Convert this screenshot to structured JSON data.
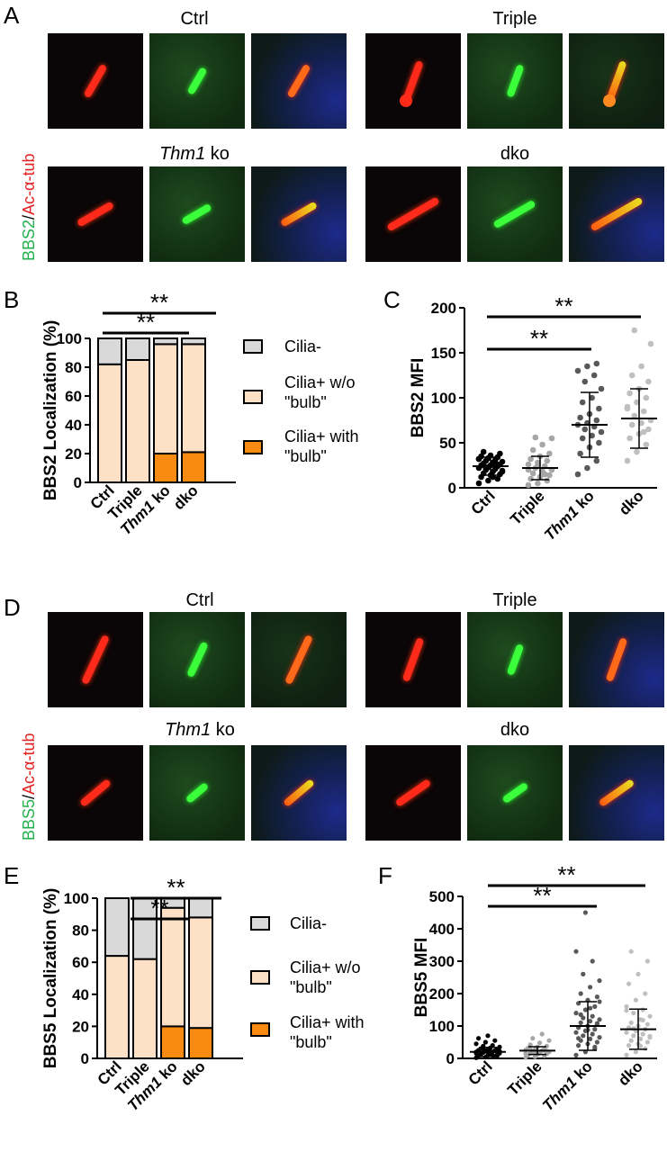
{
  "panel_labels": {
    "a": "A",
    "b": "B",
    "c": "C",
    "d": "D",
    "e": "E",
    "f": "F"
  },
  "microscopy": {
    "a": {
      "stain_green": "BBS2",
      "separator": "/",
      "stain_red": "Ac-α-tub",
      "titles": [
        "Ctrl",
        "Triple",
        "Thm1",
        " ko",
        "dko"
      ]
    },
    "d": {
      "stain_green": "BBS5",
      "separator": "/",
      "stain_red": "Ac-α-tub",
      "titles": [
        "Ctrl",
        "Triple",
        "Thm1",
        " ko",
        "dko"
      ]
    }
  },
  "colors": {
    "cilia_neg": "#d9d9d9",
    "cilia_no_bulb": "#fde0c6",
    "cilia_bulb": "#f98a12",
    "dots_ctrl": "#000000",
    "dots_triple": "#a6a6a6",
    "dots_thm1": "#595959",
    "dots_dko": "#bfbfbf"
  },
  "legend": {
    "cilia_neg": "Cilia-",
    "no_bulb_1": "Cilia+ w/o",
    "no_bulb_2": "\"bulb\"",
    "bulb_1": "Cilia+ with",
    "bulb_2": "\"bulb\""
  },
  "chart_data": [
    {
      "id": "B",
      "type": "bar",
      "stacked": true,
      "ylabel": "BBS2 Localization (%)",
      "ylim": [
        0,
        100
      ],
      "yticks": [
        0,
        20,
        40,
        60,
        80,
        100
      ],
      "categories": [
        "Ctrl",
        "Triple",
        "Thm1 ko",
        "dko"
      ],
      "series": [
        {
          "name": "Cilia+ with \"bulb\"",
          "values": [
            0,
            0,
            20,
            21
          ]
        },
        {
          "name": "Cilia+ w/o \"bulb\"",
          "values": [
            82,
            85,
            76,
            75
          ]
        },
        {
          "name": "Cilia-",
          "values": [
            18,
            15,
            4,
            4
          ]
        }
      ],
      "significance": [
        {
          "from": "Ctrl",
          "to": "Thm1 ko",
          "label": "**"
        },
        {
          "from": "Ctrl",
          "to": "dko",
          "label": "**"
        }
      ]
    },
    {
      "id": "C",
      "type": "scatter",
      "ylabel": "BBS2 MFI",
      "ylim": [
        0,
        200
      ],
      "yticks": [
        0,
        50,
        100,
        150,
        200
      ],
      "categories": [
        "Ctrl",
        "Triple",
        "Thm1 ko",
        "dko"
      ],
      "groups": [
        {
          "name": "Ctrl",
          "mean": 24,
          "sd": 10,
          "values": [
            5,
            8,
            10,
            12,
            14,
            15,
            16,
            18,
            19,
            20,
            21,
            22,
            23,
            24,
            25,
            25,
            26,
            27,
            28,
            29,
            30,
            31,
            32,
            33,
            34,
            35,
            36,
            38,
            40,
            12,
            18,
            22,
            28,
            32
          ]
        },
        {
          "name": "Triple",
          "mean": 22,
          "sd": 13,
          "values": [
            3,
            5,
            8,
            10,
            12,
            14,
            16,
            18,
            20,
            22,
            24,
            26,
            28,
            30,
            32,
            35,
            38,
            42,
            48,
            55,
            56,
            15,
            20,
            25
          ]
        },
        {
          "name": "Thm1 ko",
          "mean": 70,
          "sd": 36,
          "values": [
            15,
            22,
            30,
            38,
            45,
            50,
            55,
            58,
            62,
            65,
            68,
            70,
            72,
            75,
            78,
            82,
            88,
            95,
            100,
            110,
            118,
            125,
            130,
            135,
            138
          ]
        },
        {
          "name": "dko",
          "mean": 77,
          "sd": 33,
          "values": [
            30,
            40,
            48,
            55,
            60,
            65,
            70,
            72,
            75,
            80,
            85,
            90,
            95,
            100,
            105,
            110,
            118,
            125,
            135,
            160,
            175,
            62,
            88
          ]
        }
      ],
      "significance": [
        {
          "from": "Ctrl",
          "to": "Thm1 ko",
          "label": "**"
        },
        {
          "from": "Ctrl",
          "to": "dko",
          "label": "**"
        }
      ]
    },
    {
      "id": "E",
      "type": "bar",
      "stacked": true,
      "ylabel": "BBS5 Localization (%)",
      "ylim": [
        0,
        100
      ],
      "yticks": [
        0,
        20,
        40,
        60,
        80,
        100
      ],
      "categories": [
        "Ctrl",
        "Triple",
        "Thm1 ko",
        "dko"
      ],
      "series": [
        {
          "name": "Cilia+ with \"bulb\"",
          "values": [
            0,
            0,
            20,
            19
          ]
        },
        {
          "name": "Cilia+ w/o \"bulb\"",
          "values": [
            64,
            62,
            74,
            69
          ]
        },
        {
          "name": "Cilia-",
          "values": [
            36,
            38,
            6,
            12
          ]
        }
      ],
      "significance": [
        {
          "from": "Ctrl",
          "to": "Thm1 ko",
          "label": "**"
        },
        {
          "from": "Ctrl",
          "to": "dko",
          "label": "**"
        }
      ]
    },
    {
      "id": "F",
      "type": "scatter",
      "ylabel": "BBS5 MFI",
      "ylim": [
        0,
        500
      ],
      "yticks": [
        0,
        100,
        200,
        300,
        400,
        500
      ],
      "categories": [
        "Ctrl",
        "Triple",
        "Thm1 ko",
        "dko"
      ],
      "groups": [
        {
          "name": "Ctrl",
          "mean": 20,
          "sd": 14,
          "values": [
            2,
            4,
            6,
            8,
            10,
            12,
            14,
            15,
            16,
            18,
            20,
            20,
            22,
            24,
            25,
            26,
            28,
            30,
            32,
            35,
            38,
            40,
            45,
            50,
            55,
            62,
            70,
            8,
            12,
            18,
            22,
            28,
            10,
            16,
            24
          ]
        },
        {
          "name": "Triple",
          "mean": 24,
          "sd": 12,
          "values": [
            3,
            5,
            8,
            10,
            12,
            14,
            16,
            18,
            20,
            22,
            24,
            26,
            28,
            30,
            32,
            35,
            38,
            42,
            48,
            55,
            62,
            75,
            15,
            20,
            25,
            30,
            18,
            22,
            28
          ]
        },
        {
          "name": "Thm1 ko",
          "mean": 100,
          "sd": 75,
          "values": [
            10,
            20,
            30,
            40,
            45,
            50,
            55,
            60,
            65,
            70,
            75,
            80,
            85,
            90,
            95,
            100,
            105,
            110,
            115,
            120,
            125,
            130,
            140,
            150,
            160,
            170,
            180,
            190,
            200,
            220,
            240,
            260,
            300,
            330,
            450,
            35,
            62,
            88,
            108,
            135,
            155,
            175
          ]
        },
        {
          "name": "dko",
          "mean": 90,
          "sd": 62,
          "values": [
            10,
            20,
            30,
            40,
            45,
            50,
            55,
            60,
            65,
            70,
            75,
            80,
            85,
            90,
            95,
            100,
            105,
            110,
            120,
            130,
            140,
            150,
            160,
            180,
            200,
            230,
            260,
            300,
            330,
            38,
            68,
            92,
            118,
            148
          ]
        }
      ],
      "significance": [
        {
          "from": "Ctrl",
          "to": "Thm1 ko",
          "label": "**"
        },
        {
          "from": "Ctrl",
          "to": "dko",
          "label": "**"
        }
      ]
    }
  ]
}
